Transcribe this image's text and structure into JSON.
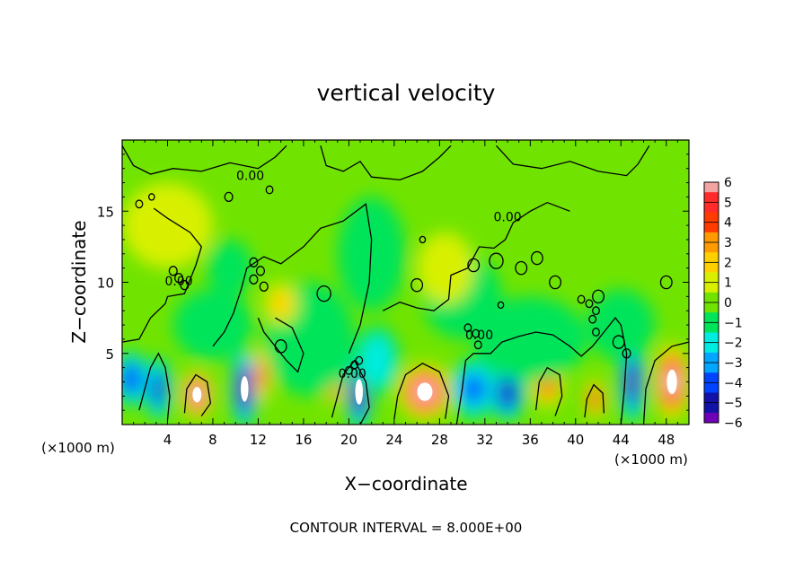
{
  "chart_data": {
    "type": "heatmap",
    "title": "vertical velocity",
    "xlabel": "X−coordinate",
    "ylabel": "Z−coordinate",
    "x_unit": "(×1000 m)",
    "x_unit_secondary": "(×1000 m)",
    "xlim": [
      0,
      50
    ],
    "ylim": [
      0,
      20
    ],
    "x_ticks": [
      4,
      8,
      12,
      16,
      20,
      24,
      28,
      32,
      36,
      40,
      44,
      48
    ],
    "y_ticks": [
      5,
      10,
      15
    ],
    "footnote": "CONTOUR INTERVAL = 8.000E+00",
    "contour_labels": [
      {
        "text": "0.00",
        "x": 11.3,
        "y": 17.5
      },
      {
        "text": "0.00",
        "x": 34.0,
        "y": 14.6
      },
      {
        "text": "0.00",
        "x": 5.0,
        "y": 10.1
      },
      {
        "text": "0.00",
        "x": 31.5,
        "y": 6.3
      },
      {
        "text": "0.00",
        "x": 20.3,
        "y": 3.6
      }
    ],
    "colorbar": {
      "ticks": [
        6,
        5,
        4,
        3,
        2,
        1,
        0,
        -1,
        -2,
        -3,
        -4,
        -5,
        -6
      ],
      "levels": [
        {
          "value": 6,
          "color": "#f4a3a3"
        },
        {
          "value": 5,
          "color": "#ff2a2a"
        },
        {
          "value": 4,
          "color": "#ff3b00"
        },
        {
          "value": 3,
          "color": "#ff9a00"
        },
        {
          "value": 2,
          "color": "#ffd000"
        },
        {
          "value": 1,
          "color": "#d8f000"
        },
        {
          "value": 0,
          "color": "#70e400"
        },
        {
          "value": -1,
          "color": "#00e45a"
        },
        {
          "value": -2,
          "color": "#00ece0"
        },
        {
          "value": -3,
          "color": "#00a6ff"
        },
        {
          "value": -4,
          "color": "#0044ff"
        },
        {
          "value": -5,
          "color": "#1212a8"
        },
        {
          "value": -6,
          "color": "#7000b8"
        }
      ]
    },
    "blobs": [
      {
        "x": 0.8,
        "y": 3.2,
        "value": -4.5,
        "rx": 1.6,
        "ry": 2.0
      },
      {
        "x": 3.2,
        "y": 2.5,
        "value": -5.0,
        "rx": 1.2,
        "ry": 2.3
      },
      {
        "x": 6.6,
        "y": 2.1,
        "value": 6.5,
        "rx": 1.4,
        "ry": 1.7
      },
      {
        "x": 10.8,
        "y": 2.5,
        "value": -6.5,
        "rx": 1.2,
        "ry": 2.8
      },
      {
        "x": 12.3,
        "y": 3.5,
        "value": 4.0,
        "rx": 0.8,
        "ry": 2.0
      },
      {
        "x": 18.7,
        "y": 2.5,
        "value": 4.5,
        "rx": 0.8,
        "ry": 1.0
      },
      {
        "x": 20.9,
        "y": 2.3,
        "value": -6.5,
        "rx": 1.2,
        "ry": 2.8
      },
      {
        "x": 26.7,
        "y": 2.3,
        "value": 6.5,
        "rx": 2.4,
        "ry": 2.0
      },
      {
        "x": 31.0,
        "y": 2.5,
        "value": -4.0,
        "rx": 2.2,
        "ry": 2.2
      },
      {
        "x": 34.0,
        "y": 2.2,
        "value": -5.5,
        "rx": 1.6,
        "ry": 2.0
      },
      {
        "x": 37.5,
        "y": 2.8,
        "value": 3.5,
        "rx": 1.4,
        "ry": 1.6
      },
      {
        "x": 41.7,
        "y": 1.8,
        "value": 4.5,
        "rx": 0.9,
        "ry": 1.4
      },
      {
        "x": 45.0,
        "y": 3.0,
        "value": -6.0,
        "rx": 1.2,
        "ry": 3.0
      },
      {
        "x": 48.5,
        "y": 3.0,
        "value": 6.5,
        "rx": 1.6,
        "ry": 2.7
      },
      {
        "x": 16.5,
        "y": 6.0,
        "value": -1.2,
        "rx": 4.0,
        "ry": 4.0
      },
      {
        "x": 22.5,
        "y": 4.5,
        "value": -2.5,
        "rx": 2.0,
        "ry": 2.5
      },
      {
        "x": 36.0,
        "y": 6.0,
        "value": -1.2,
        "rx": 5.0,
        "ry": 3.0
      },
      {
        "x": 8.0,
        "y": 7.0,
        "value": -1.0,
        "rx": 3.5,
        "ry": 2.5
      },
      {
        "x": 44.0,
        "y": 7.0,
        "value": -1.2,
        "rx": 3.0,
        "ry": 2.5
      },
      {
        "x": 22.0,
        "y": 12.0,
        "value": -1.0,
        "rx": 3.0,
        "ry": 4.0
      },
      {
        "x": 30.0,
        "y": 9.0,
        "value": -1.0,
        "rx": 3.5,
        "ry": 3.0
      },
      {
        "x": 28.5,
        "y": 11.0,
        "value": 1.0,
        "rx": 2.5,
        "ry": 2.5
      },
      {
        "x": 9.5,
        "y": 11.0,
        "value": -1.0,
        "rx": 2.0,
        "ry": 2.0
      },
      {
        "x": 4.0,
        "y": 14.0,
        "value": 1.0,
        "rx": 4.0,
        "ry": 3.0
      },
      {
        "x": 14.0,
        "y": 8.5,
        "value": 2.0,
        "rx": 1.5,
        "ry": 1.5
      }
    ],
    "contours": [
      [
        [
          0,
          5.8
        ],
        [
          1.5,
          6.0
        ],
        [
          2.5,
          7.5
        ],
        [
          3.8,
          8.5
        ],
        [
          4.0,
          9.0
        ],
        [
          5.5,
          9.2
        ],
        [
          6.5,
          11.2
        ],
        [
          7.0,
          12.5
        ],
        [
          6.0,
          13.5
        ],
        [
          4.0,
          14.5
        ],
        [
          2.8,
          15.2
        ]
      ],
      [
        [
          8.0,
          5.5
        ],
        [
          9.0,
          6.5
        ],
        [
          9.8,
          7.8
        ],
        [
          10.5,
          9.5
        ],
        [
          11.0,
          11.0
        ],
        [
          12.5,
          11.8
        ],
        [
          14.0,
          11.3
        ],
        [
          16.0,
          12.5
        ],
        [
          17.5,
          13.8
        ],
        [
          19.5,
          14.3
        ],
        [
          21.5,
          15.5
        ],
        [
          22.0,
          13.0
        ],
        [
          21.8,
          10.0
        ],
        [
          21.0,
          7.0
        ],
        [
          20.0,
          5.0
        ]
      ],
      [
        [
          12.0,
          7.5
        ],
        [
          12.5,
          6.5
        ],
        [
          13.5,
          5.5
        ],
        [
          14.5,
          4.5
        ],
        [
          15.5,
          3.7
        ],
        [
          16.0,
          5.0
        ],
        [
          15.0,
          6.8
        ],
        [
          13.5,
          7.5
        ]
      ],
      [
        [
          23.0,
          8.0
        ],
        [
          24.5,
          8.6
        ],
        [
          26.0,
          8.2
        ],
        [
          27.5,
          8.0
        ],
        [
          28.8,
          8.8
        ],
        [
          29.0,
          10.5
        ],
        [
          30.5,
          11.0
        ],
        [
          31.5,
          12.5
        ],
        [
          32.8,
          12.4
        ],
        [
          33.8,
          13.0
        ],
        [
          34.5,
          14.2
        ],
        [
          36.0,
          15.0
        ],
        [
          37.5,
          15.6
        ],
        [
          39.5,
          15.0
        ]
      ],
      [
        [
          29.5,
          0
        ],
        [
          30.0,
          2.5
        ],
        [
          30.3,
          4.5
        ],
        [
          31.0,
          5.0
        ],
        [
          32.5,
          5.0
        ],
        [
          33.5,
          5.8
        ],
        [
          35.0,
          6.2
        ],
        [
          36.5,
          6.5
        ],
        [
          38.0,
          6.3
        ],
        [
          39.5,
          5.5
        ],
        [
          40.5,
          4.8
        ],
        [
          41.5,
          5.5
        ],
        [
          42.5,
          6.5
        ],
        [
          43.5,
          7.5
        ],
        [
          44.0,
          7.0
        ],
        [
          44.5,
          5.0
        ],
        [
          44.3,
          2.5
        ],
        [
          44.0,
          0
        ]
      ],
      [
        [
          0,
          19.6
        ],
        [
          1.0,
          18.2
        ],
        [
          2.5,
          17.6
        ],
        [
          4.5,
          18.0
        ],
        [
          7.0,
          17.8
        ],
        [
          9.5,
          18.4
        ],
        [
          12.0,
          18.0
        ],
        [
          13.5,
          18.8
        ],
        [
          14.5,
          19.6
        ]
      ],
      [
        [
          17.5,
          19.6
        ],
        [
          18.0,
          18.2
        ],
        [
          19.5,
          17.8
        ],
        [
          21.0,
          18.5
        ],
        [
          22.0,
          17.4
        ],
        [
          24.5,
          17.2
        ],
        [
          26.5,
          17.8
        ],
        [
          28.0,
          18.8
        ],
        [
          29.0,
          19.6
        ]
      ],
      [
        [
          33.0,
          19.6
        ],
        [
          34.5,
          18.3
        ],
        [
          37.0,
          18.0
        ],
        [
          39.5,
          18.5
        ],
        [
          42.0,
          17.8
        ],
        [
          44.5,
          17.5
        ],
        [
          45.5,
          18.3
        ],
        [
          46.5,
          19.6
        ]
      ],
      [
        [
          1.5,
          1.0
        ],
        [
          2.0,
          2.5
        ],
        [
          2.5,
          4.0
        ],
        [
          3.2,
          5.0
        ],
        [
          3.8,
          4.0
        ],
        [
          4.2,
          2.0
        ],
        [
          4.0,
          0.3
        ]
      ],
      [
        [
          18.5,
          0.5
        ],
        [
          19.0,
          2.0
        ],
        [
          19.5,
          3.5
        ],
        [
          20.5,
          4.5
        ],
        [
          21.5,
          3.0
        ],
        [
          21.8,
          1.2
        ],
        [
          21.0,
          0
        ]
      ],
      [
        [
          46.0,
          0
        ],
        [
          46.2,
          2.5
        ],
        [
          47.0,
          4.5
        ],
        [
          48.5,
          5.5
        ],
        [
          50,
          5.8
        ]
      ],
      [
        [
          24.0,
          0.4
        ],
        [
          24.3,
          2.0
        ],
        [
          25.0,
          3.5
        ],
        [
          26.5,
          4.3
        ],
        [
          28.0,
          3.7
        ],
        [
          28.8,
          2.0
        ],
        [
          28.5,
          0.4
        ]
      ],
      [
        [
          5.5,
          0.8
        ],
        [
          5.7,
          2.5
        ],
        [
          6.5,
          3.5
        ],
        [
          7.5,
          3.0
        ],
        [
          7.8,
          1.5
        ],
        [
          7.0,
          0.6
        ]
      ],
      [
        [
          36.5,
          1.0
        ],
        [
          36.8,
          3.0
        ],
        [
          37.5,
          4.0
        ],
        [
          38.6,
          3.5
        ],
        [
          38.8,
          2.0
        ],
        [
          38.2,
          0.6
        ]
      ],
      [
        [
          40.8,
          0.5
        ],
        [
          41.0,
          1.8
        ],
        [
          41.6,
          2.8
        ],
        [
          42.4,
          2.2
        ],
        [
          42.5,
          0.8
        ]
      ]
    ],
    "small_contours": [
      {
        "x": 11.6,
        "y": 11.4,
        "r": 0.35
      },
      {
        "x": 12.2,
        "y": 10.8,
        "r": 0.35
      },
      {
        "x": 11.6,
        "y": 10.2,
        "r": 0.35
      },
      {
        "x": 12.5,
        "y": 9.7,
        "r": 0.35
      },
      {
        "x": 4.5,
        "y": 10.8,
        "r": 0.35
      },
      {
        "x": 5.0,
        "y": 10.3,
        "r": 0.35
      },
      {
        "x": 5.5,
        "y": 9.8,
        "r": 0.35
      },
      {
        "x": 17.8,
        "y": 9.2,
        "r": 0.6
      },
      {
        "x": 26.0,
        "y": 9.8,
        "r": 0.5
      },
      {
        "x": 31.0,
        "y": 11.2,
        "r": 0.5
      },
      {
        "x": 33.0,
        "y": 11.5,
        "r": 0.6
      },
      {
        "x": 35.2,
        "y": 11.0,
        "r": 0.5
      },
      {
        "x": 36.6,
        "y": 11.7,
        "r": 0.5
      },
      {
        "x": 38.2,
        "y": 10.0,
        "r": 0.5
      },
      {
        "x": 42.0,
        "y": 9.0,
        "r": 0.5
      },
      {
        "x": 40.5,
        "y": 8.8,
        "r": 0.3
      },
      {
        "x": 41.2,
        "y": 8.5,
        "r": 0.3
      },
      {
        "x": 41.8,
        "y": 8.0,
        "r": 0.3
      },
      {
        "x": 41.5,
        "y": 7.4,
        "r": 0.3
      },
      {
        "x": 41.8,
        "y": 6.5,
        "r": 0.3
      },
      {
        "x": 43.8,
        "y": 5.8,
        "r": 0.5
      },
      {
        "x": 44.5,
        "y": 5.0,
        "r": 0.35
      },
      {
        "x": 30.5,
        "y": 6.8,
        "r": 0.3
      },
      {
        "x": 31.2,
        "y": 6.4,
        "r": 0.3
      },
      {
        "x": 31.4,
        "y": 5.6,
        "r": 0.3
      },
      {
        "x": 33.4,
        "y": 8.4,
        "r": 0.25
      },
      {
        "x": 14.0,
        "y": 5.5,
        "r": 0.5
      },
      {
        "x": 20.0,
        "y": 3.8,
        "r": 0.3
      },
      {
        "x": 20.5,
        "y": 4.2,
        "r": 0.3
      },
      {
        "x": 20.9,
        "y": 4.5,
        "r": 0.3
      },
      {
        "x": 1.5,
        "y": 15.5,
        "r": 0.3
      },
      {
        "x": 2.6,
        "y": 16.0,
        "r": 0.25
      },
      {
        "x": 9.4,
        "y": 16.0,
        "r": 0.35
      },
      {
        "x": 13.0,
        "y": 16.5,
        "r": 0.3
      },
      {
        "x": 26.5,
        "y": 13.0,
        "r": 0.25
      },
      {
        "x": 48.0,
        "y": 10.0,
        "r": 0.5
      }
    ]
  }
}
